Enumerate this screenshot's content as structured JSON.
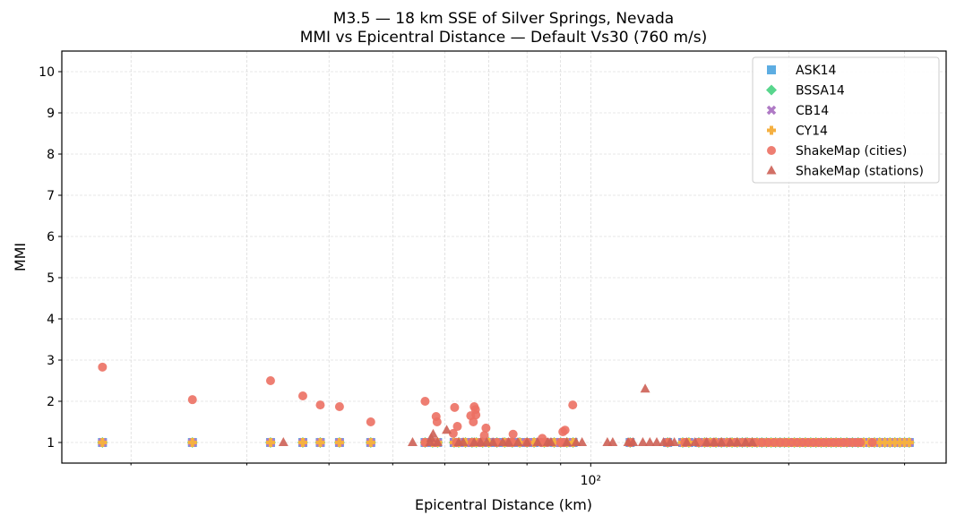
{
  "chart_data": {
    "type": "scatter",
    "title": "M3.5 — 18 km SSE of Silver Springs, Nevada",
    "subtitle": "MMI vs Epicentral Distance — Default Vs30 (760 m/s)",
    "xlabel": "Epicentral Distance (km)",
    "ylabel": "MMI",
    "xscale": "log",
    "xlim": [
      15.7,
      347
    ],
    "ylim": [
      0.5,
      10.5
    ],
    "x_major_ticks": [
      {
        "value": 100,
        "label": "10²"
      }
    ],
    "x_minor_ticks": [
      20,
      30,
      40,
      50,
      60,
      70,
      80,
      90,
      200,
      300
    ],
    "y_ticks": [
      1,
      2,
      3,
      4,
      5,
      6,
      7,
      8,
      9,
      10
    ],
    "grid": true,
    "legend_placement": "top-right",
    "model_distances_km": [
      18.1,
      24.8,
      32.6,
      36.5,
      38.8,
      41.5,
      46.3,
      56.0,
      57.5,
      58.5,
      62.0,
      63.0,
      64.5,
      66.0,
      67.0,
      68.5,
      70.0,
      72.0,
      74.0,
      76.0,
      78.0,
      80.0,
      82.0,
      85.0,
      88.0,
      90.0,
      92.0,
      94.0,
      114.8,
      130.9,
      138,
      141,
      146,
      149,
      152,
      155,
      158,
      161,
      164,
      167,
      170,
      173,
      176,
      179,
      182,
      185,
      188,
      191,
      194,
      197,
      200,
      204,
      208,
      212,
      216,
      220,
      224,
      228,
      232,
      236,
      240,
      245,
      250,
      255,
      260,
      265,
      270,
      275,
      280,
      285,
      290,
      295,
      300,
      305
    ],
    "series": [
      {
        "name": "ASK14",
        "marker": "square",
        "color": "#5dade2",
        "mmi": 1.0
      },
      {
        "name": "BSSA14",
        "marker": "diamond",
        "color": "#58d68d",
        "mmi": 1.0
      },
      {
        "name": "CB14",
        "marker": "x",
        "color": "#af7ac5",
        "mmi": 1.0
      },
      {
        "name": "CY14",
        "marker": "plus",
        "color": "#f5b041",
        "mmi": 1.0
      },
      {
        "name": "ShakeMap (cities)",
        "marker": "circle",
        "color": "#ec7063",
        "points": [
          [
            18.1,
            2.83
          ],
          [
            24.8,
            2.04
          ],
          [
            32.6,
            2.5
          ],
          [
            36.5,
            2.13
          ],
          [
            38.8,
            1.91
          ],
          [
            41.5,
            1.87
          ],
          [
            46.3,
            1.5
          ],
          [
            56.0,
            2.0
          ],
          [
            58.2,
            1.63
          ],
          [
            58.4,
            1.5
          ],
          [
            62.1,
            1.85
          ],
          [
            62.7,
            1.39
          ],
          [
            61.8,
            1.22
          ],
          [
            66.5,
            1.87
          ],
          [
            66.8,
            1.8
          ],
          [
            65.7,
            1.65
          ],
          [
            66.9,
            1.67
          ],
          [
            66.3,
            1.5
          ],
          [
            69.3,
            1.35
          ],
          [
            68.9,
            1.17
          ],
          [
            76.2,
            1.2
          ],
          [
            84.4,
            1.1
          ],
          [
            90.7,
            1.26
          ],
          [
            91.4,
            1.3
          ],
          [
            93.9,
            1.91
          ],
          [
            56,
            1
          ],
          [
            58,
            1
          ],
          [
            62.5,
            1
          ],
          [
            66,
            1
          ],
          [
            68,
            1
          ],
          [
            72,
            1
          ],
          [
            75,
            1
          ],
          [
            76,
            1
          ],
          [
            80,
            1
          ],
          [
            84,
            1
          ],
          [
            86,
            1
          ],
          [
            90,
            1
          ],
          [
            91,
            1
          ],
          [
            115,
            1
          ],
          [
            131,
            1
          ],
          [
            139,
            1
          ],
          [
            146,
            1
          ],
          [
            150,
            1
          ],
          [
            154,
            1
          ],
          [
            158,
            1
          ],
          [
            162,
            1
          ],
          [
            166,
            1
          ],
          [
            170,
            1
          ],
          [
            174,
            1
          ],
          [
            178,
            1
          ],
          [
            182,
            1
          ],
          [
            186,
            1
          ],
          [
            190,
            1
          ],
          [
            194,
            1
          ],
          [
            198,
            1
          ],
          [
            202,
            1
          ],
          [
            206,
            1
          ],
          [
            210,
            1
          ],
          [
            214,
            1
          ],
          [
            218,
            1
          ],
          [
            222,
            1
          ],
          [
            226,
            1
          ],
          [
            230,
            1
          ],
          [
            234,
            1
          ],
          [
            238,
            1
          ],
          [
            242,
            1
          ],
          [
            246,
            1
          ],
          [
            250,
            1
          ],
          [
            254,
            1
          ],
          [
            257,
            1
          ],
          [
            268,
            1
          ]
        ]
      },
      {
        "name": "ShakeMap (stations)",
        "marker": "triangle",
        "color": "#cd6155",
        "points": [
          [
            121,
            2.3
          ],
          [
            57.6,
            1.2
          ],
          [
            60.4,
            1.3
          ],
          [
            57.2,
            1.1
          ],
          [
            34.1,
            1
          ],
          [
            53.6,
            1
          ],
          [
            57,
            1
          ],
          [
            58.5,
            1
          ],
          [
            63,
            1
          ],
          [
            64,
            1
          ],
          [
            66.5,
            1
          ],
          [
            68,
            1
          ],
          [
            69.5,
            1
          ],
          [
            71,
            1
          ],
          [
            73.5,
            1
          ],
          [
            75,
            1
          ],
          [
            77.5,
            1
          ],
          [
            80,
            1
          ],
          [
            83,
            1
          ],
          [
            86,
            1
          ],
          [
            87,
            1
          ],
          [
            92,
            1
          ],
          [
            95,
            1
          ],
          [
            97,
            1
          ],
          [
            106,
            1
          ],
          [
            108,
            1
          ],
          [
            114,
            1
          ],
          [
            116,
            1
          ],
          [
            120,
            1
          ],
          [
            123,
            1
          ],
          [
            126,
            1
          ],
          [
            129,
            1
          ],
          [
            132,
            1
          ],
          [
            134,
            1
          ],
          [
            140,
            1
          ],
          [
            144,
            1
          ],
          [
            150,
            1
          ],
          [
            154,
            1
          ],
          [
            158,
            1
          ],
          [
            163,
            1
          ],
          [
            167,
            1
          ],
          [
            172,
            1
          ],
          [
            176,
            1
          ]
        ]
      }
    ]
  }
}
